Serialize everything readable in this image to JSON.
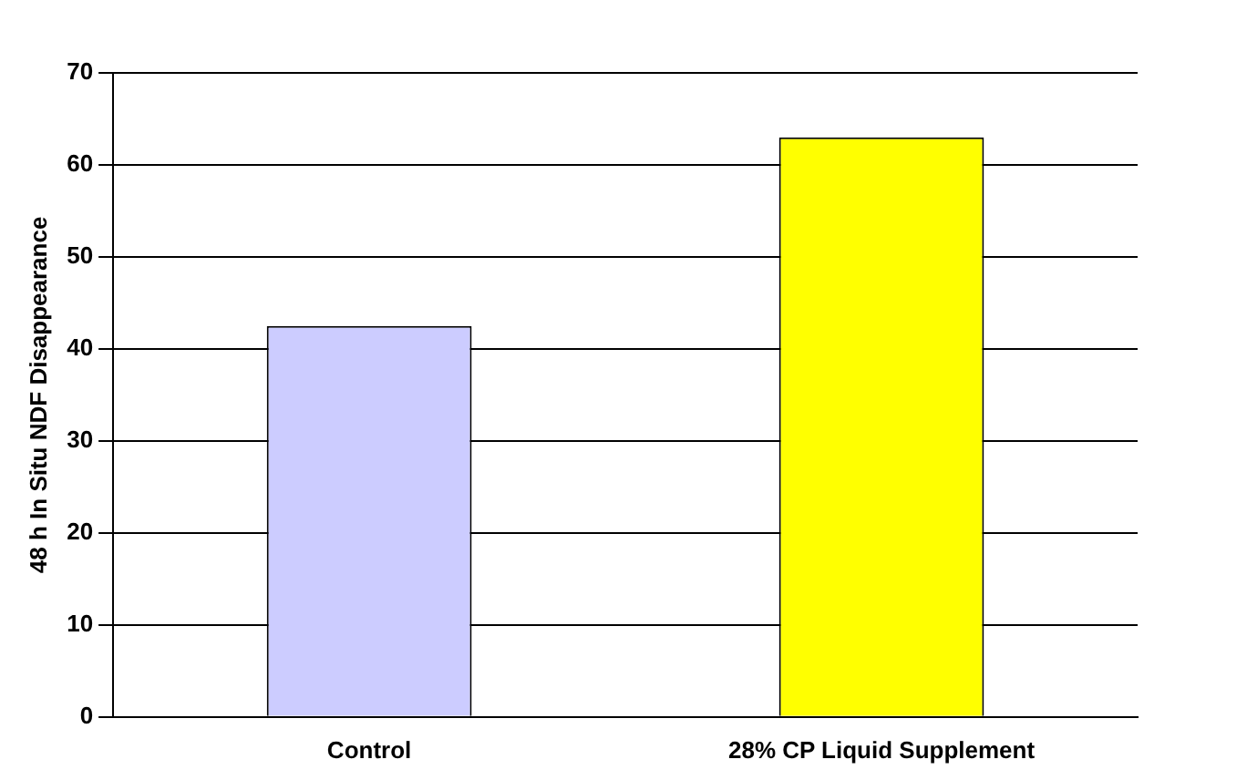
{
  "chart_data": {
    "type": "bar",
    "ylabel": "48 h In Situ NDF Disappearance",
    "categories": [
      "Control",
      "28% CP Liquid Supplement"
    ],
    "values": [
      42.5,
      63
    ],
    "colors": [
      "#ccccff",
      "#ffff00"
    ],
    "ylim": [
      0,
      70
    ],
    "yticks": [
      0,
      10,
      20,
      30,
      40,
      50,
      60,
      70
    ],
    "grid": "y",
    "legend": false
  }
}
